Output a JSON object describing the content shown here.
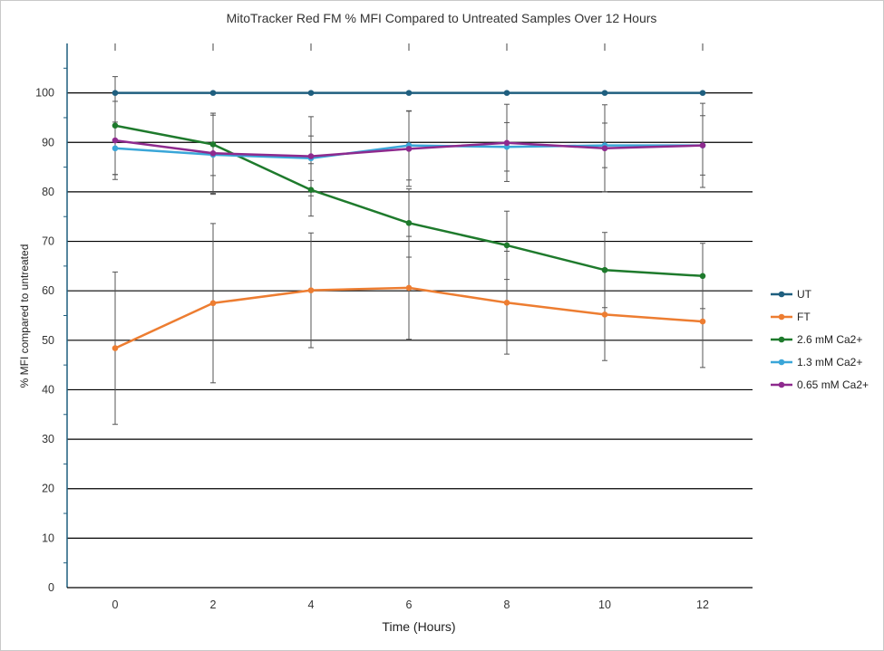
{
  "chart_data": {
    "type": "line",
    "title": "MitoTracker Red FM % MFI Compared to Untreated Samples Over 12 Hours",
    "xlabel": "Time (Hours)",
    "ylabel": "% MFI compared to untreated",
    "x": [
      0,
      2,
      4,
      6,
      8,
      10,
      12
    ],
    "x_ticks": [
      "0",
      "2",
      "4",
      "6",
      "8",
      "10",
      "12"
    ],
    "y_ticks": [
      "0",
      "10",
      "20",
      "30",
      "40",
      "50",
      "60",
      "70",
      "80",
      "90",
      "100"
    ],
    "ylim": [
      0,
      110
    ],
    "grid": "horizontal",
    "legend_position": "right",
    "series": [
      {
        "name": "UT",
        "color": "#1f5f7f",
        "values": [
          100,
          100,
          100,
          100,
          100,
          100,
          100
        ],
        "error": [
          0,
          0,
          0,
          0,
          0,
          0,
          0
        ]
      },
      {
        "name": "FT",
        "color": "#ed7d31",
        "values": [
          48.4,
          57.5,
          60.1,
          60.6,
          57.6,
          55.2,
          53.8
        ],
        "error": [
          15.4,
          16.1,
          11.6,
          10.4,
          10.4,
          9.3,
          9.3
        ]
      },
      {
        "name": "2.6 mM Ca2+",
        "color": "#1e7a2c",
        "values": [
          93.4,
          89.6,
          80.4,
          73.7,
          69.2,
          64.2,
          63.0
        ],
        "error": [
          9.9,
          6.3,
          5.3,
          6.9,
          6.9,
          7.6,
          6.6
        ]
      },
      {
        "name": "1.3 mM Ca2+",
        "color": "#3aa6d8",
        "values": [
          88.8,
          87.5,
          86.8,
          89.4,
          89.1,
          89.4,
          89.4
        ],
        "error": [
          5.3,
          8.0,
          4.5,
          7.0,
          4.9,
          4.5,
          6.0
        ]
      },
      {
        "name": "0.65 mM Ca2+",
        "color": "#8e2a8e",
        "values": [
          90.4,
          87.8,
          87.2,
          88.7,
          89.9,
          88.8,
          89.4
        ],
        "error": [
          7.9,
          8.1,
          8.0,
          7.6,
          7.8,
          8.8,
          8.5
        ]
      }
    ]
  }
}
